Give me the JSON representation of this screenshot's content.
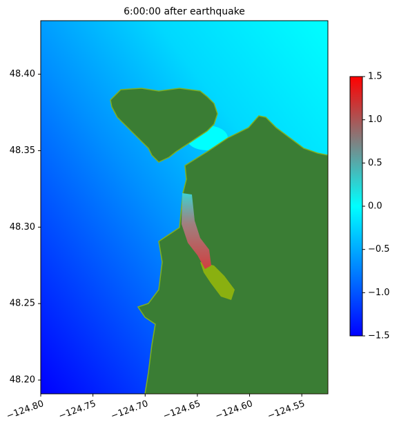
{
  "chart_data": {
    "type": "map",
    "title": "6:00:00 after earthquake",
    "xlim": [
      -124.8,
      -124.525
    ],
    "ylim": [
      48.191,
      48.435
    ],
    "xticks": [
      {
        "value": -124.8,
        "label": "−124.80"
      },
      {
        "value": -124.75,
        "label": "−124.75"
      },
      {
        "value": -124.7,
        "label": "−124.70"
      },
      {
        "value": -124.65,
        "label": "−124.65"
      },
      {
        "value": -124.6,
        "label": "−124.60"
      },
      {
        "value": -124.55,
        "label": "−124.55"
      }
    ],
    "yticks": [
      {
        "value": 48.2,
        "label": "48.20"
      },
      {
        "value": 48.25,
        "label": "48.25"
      },
      {
        "value": 48.3,
        "label": "48.30"
      },
      {
        "value": 48.35,
        "label": "48.35"
      },
      {
        "value": 48.4,
        "label": "48.40"
      }
    ],
    "clim": [
      -1.5,
      1.5
    ],
    "cticks": [
      {
        "value": -1.5,
        "label": "−1.5"
      },
      {
        "value": -1.0,
        "label": "−1.0"
      },
      {
        "value": -0.5,
        "label": "−0.5"
      },
      {
        "value": 0.0,
        "label": "0.0"
      },
      {
        "value": 0.5,
        "label": "0.5"
      },
      {
        "value": 1.0,
        "label": "1.0"
      },
      {
        "value": 1.5,
        "label": "1.5"
      }
    ]
  }
}
